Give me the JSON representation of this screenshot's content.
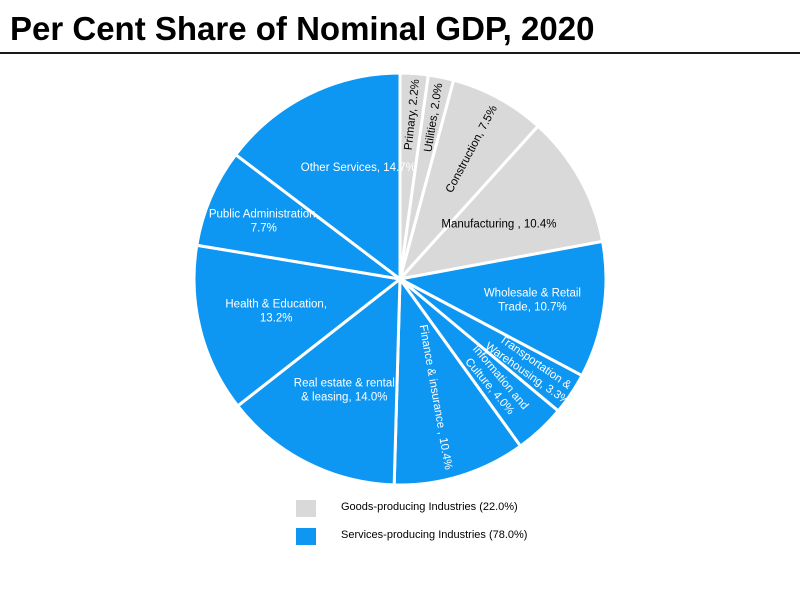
{
  "title": "Per Cent Share of Nominal GDP, 2020",
  "colors": {
    "goods": "#d9d9d9",
    "services": "#0d96f2",
    "goods_text": "#000000",
    "services_text": "#ffffff"
  },
  "legend": [
    {
      "label": "Goods-producing Industries (22.0%)",
      "group": "goods"
    },
    {
      "label": "Services-producing Industries (78.0%)",
      "group": "services"
    }
  ],
  "chart_data": {
    "type": "pie",
    "title": "Per Cent Share of Nominal GDP, 2020",
    "slices": [
      {
        "category": "Primary",
        "value": 2.2,
        "group": "goods",
        "label_lines": [
          "Primary, 2.2%"
        ]
      },
      {
        "category": "Utilities",
        "value": 2.0,
        "group": "goods",
        "label_lines": [
          "Utilities, 2.0%"
        ]
      },
      {
        "category": "Construction",
        "value": 7.5,
        "group": "goods",
        "label_lines": [
          "Construction, 7.5%"
        ]
      },
      {
        "category": "Manufacturing",
        "value": 10.4,
        "group": "goods",
        "label_lines": [
          "Manufacturing , 10.4%"
        ]
      },
      {
        "category": "Wholesale & Retail Trade",
        "value": 10.7,
        "group": "services",
        "label_lines": [
          "Wholesale & Retail",
          "Trade, 10.7%"
        ]
      },
      {
        "category": "Transportation & Warehousing",
        "value": 3.3,
        "group": "services",
        "label_lines": [
          "Transportation  &",
          "Warehousing, 3.3%"
        ]
      },
      {
        "category": "Information and Culture",
        "value": 4.0,
        "group": "services",
        "label_lines": [
          "Information and",
          "Culture, 4.0%"
        ]
      },
      {
        "category": "Finance & insurance",
        "value": 10.4,
        "group": "services",
        "label_lines": [
          "Finance & insurance , 10.4%"
        ]
      },
      {
        "category": "Real estate & rental & leasing",
        "value": 14.0,
        "group": "services",
        "label_lines": [
          "Real estate & rental",
          "& leasing, 14.0%"
        ]
      },
      {
        "category": "Health & Education",
        "value": 13.2,
        "group": "services",
        "label_lines": [
          "Health & Education,",
          "13.2%"
        ]
      },
      {
        "category": "Public Administration",
        "value": 7.7,
        "group": "services",
        "label_lines": [
          "Public Administration,",
          "7.7%"
        ]
      },
      {
        "category": "Other Services",
        "value": 14.7,
        "group": "services",
        "label_lines": [
          "Other Services, 14.7%"
        ]
      }
    ]
  }
}
